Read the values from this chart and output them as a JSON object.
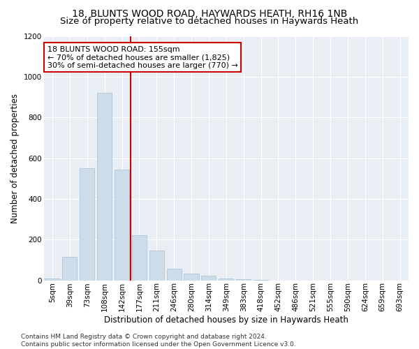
{
  "title": "18, BLUNTS WOOD ROAD, HAYWARDS HEATH, RH16 1NB",
  "subtitle": "Size of property relative to detached houses in Haywards Heath",
  "xlabel": "Distribution of detached houses by size in Haywards Heath",
  "ylabel": "Number of detached properties",
  "categories": [
    "5sqm",
    "39sqm",
    "73sqm",
    "108sqm",
    "142sqm",
    "177sqm",
    "211sqm",
    "246sqm",
    "280sqm",
    "314sqm",
    "349sqm",
    "383sqm",
    "418sqm",
    "452sqm",
    "486sqm",
    "521sqm",
    "555sqm",
    "590sqm",
    "624sqm",
    "659sqm",
    "693sqm"
  ],
  "values": [
    10,
    115,
    550,
    920,
    545,
    220,
    145,
    55,
    32,
    22,
    10,
    5,
    2,
    0,
    0,
    0,
    0,
    0,
    0,
    0,
    0
  ],
  "bar_color": "#ccdce8",
  "bar_edgecolor": "#a8c0d4",
  "vline_x": 4.5,
  "vline_color": "#cc0000",
  "annotation_text": "18 BLUNTS WOOD ROAD: 155sqm\n← 70% of detached houses are smaller (1,825)\n30% of semi-detached houses are larger (770) →",
  "annotation_box_color": "#ffffff",
  "annotation_box_edgecolor": "#cc0000",
  "ylim": [
    0,
    1200
  ],
  "yticks": [
    0,
    200,
    400,
    600,
    800,
    1000,
    1200
  ],
  "background_color": "#e8eef4",
  "footer": "Contains HM Land Registry data © Crown copyright and database right 2024.\nContains public sector information licensed under the Open Government Licence v3.0.",
  "title_fontsize": 10,
  "subtitle_fontsize": 9.5,
  "xlabel_fontsize": 8.5,
  "ylabel_fontsize": 8.5,
  "tick_fontsize": 7.5,
  "annotation_fontsize": 8,
  "footer_fontsize": 6.5
}
